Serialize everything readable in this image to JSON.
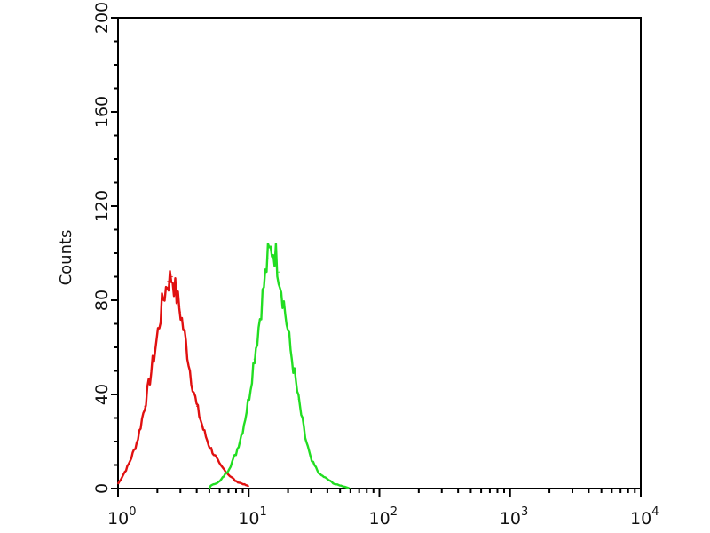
{
  "chart_data": {
    "type": "line",
    "title": "",
    "xlabel": "",
    "ylabel": "Counts",
    "xscale": "log",
    "xlim": [
      1,
      10000
    ],
    "ylim": [
      0,
      200
    ],
    "grid": false,
    "x_ticks": [
      {
        "base": "10",
        "exp": "0"
      },
      {
        "base": "10",
        "exp": "1"
      },
      {
        "base": "10",
        "exp": "2"
      },
      {
        "base": "10",
        "exp": "3"
      },
      {
        "base": "10",
        "exp": "4"
      }
    ],
    "y_ticks": [
      "0",
      "40",
      "80",
      "120",
      "160",
      "200"
    ],
    "series": [
      {
        "color": "#e01010",
        "points": [
          [
            1.0,
            2
          ],
          [
            1.2,
            10
          ],
          [
            1.4,
            20
          ],
          [
            1.6,
            35
          ],
          [
            1.8,
            50
          ],
          [
            2.0,
            65
          ],
          [
            2.2,
            80
          ],
          [
            2.4,
            88
          ],
          [
            2.6,
            90
          ],
          [
            2.8,
            82
          ],
          [
            3.0,
            75
          ],
          [
            3.3,
            62
          ],
          [
            3.6,
            48
          ],
          [
            4.0,
            35
          ],
          [
            4.5,
            25
          ],
          [
            5.0,
            18
          ],
          [
            6.0,
            10
          ],
          [
            7.0,
            6
          ],
          [
            8.0,
            3
          ],
          [
            10.0,
            1
          ]
        ]
      },
      {
        "color": "#22dd22",
        "points": [
          [
            5,
            1
          ],
          [
            6,
            3
          ],
          [
            7,
            8
          ],
          [
            8,
            15
          ],
          [
            9,
            25
          ],
          [
            10,
            38
          ],
          [
            11,
            55
          ],
          [
            12,
            70
          ],
          [
            13,
            85
          ],
          [
            14,
            98
          ],
          [
            15,
            102
          ],
          [
            16,
            100
          ],
          [
            17,
            92
          ],
          [
            19,
            75
          ],
          [
            21,
            58
          ],
          [
            24,
            38
          ],
          [
            27,
            22
          ],
          [
            30,
            12
          ],
          [
            35,
            6
          ],
          [
            45,
            2
          ],
          [
            60,
            0
          ]
        ]
      }
    ]
  }
}
